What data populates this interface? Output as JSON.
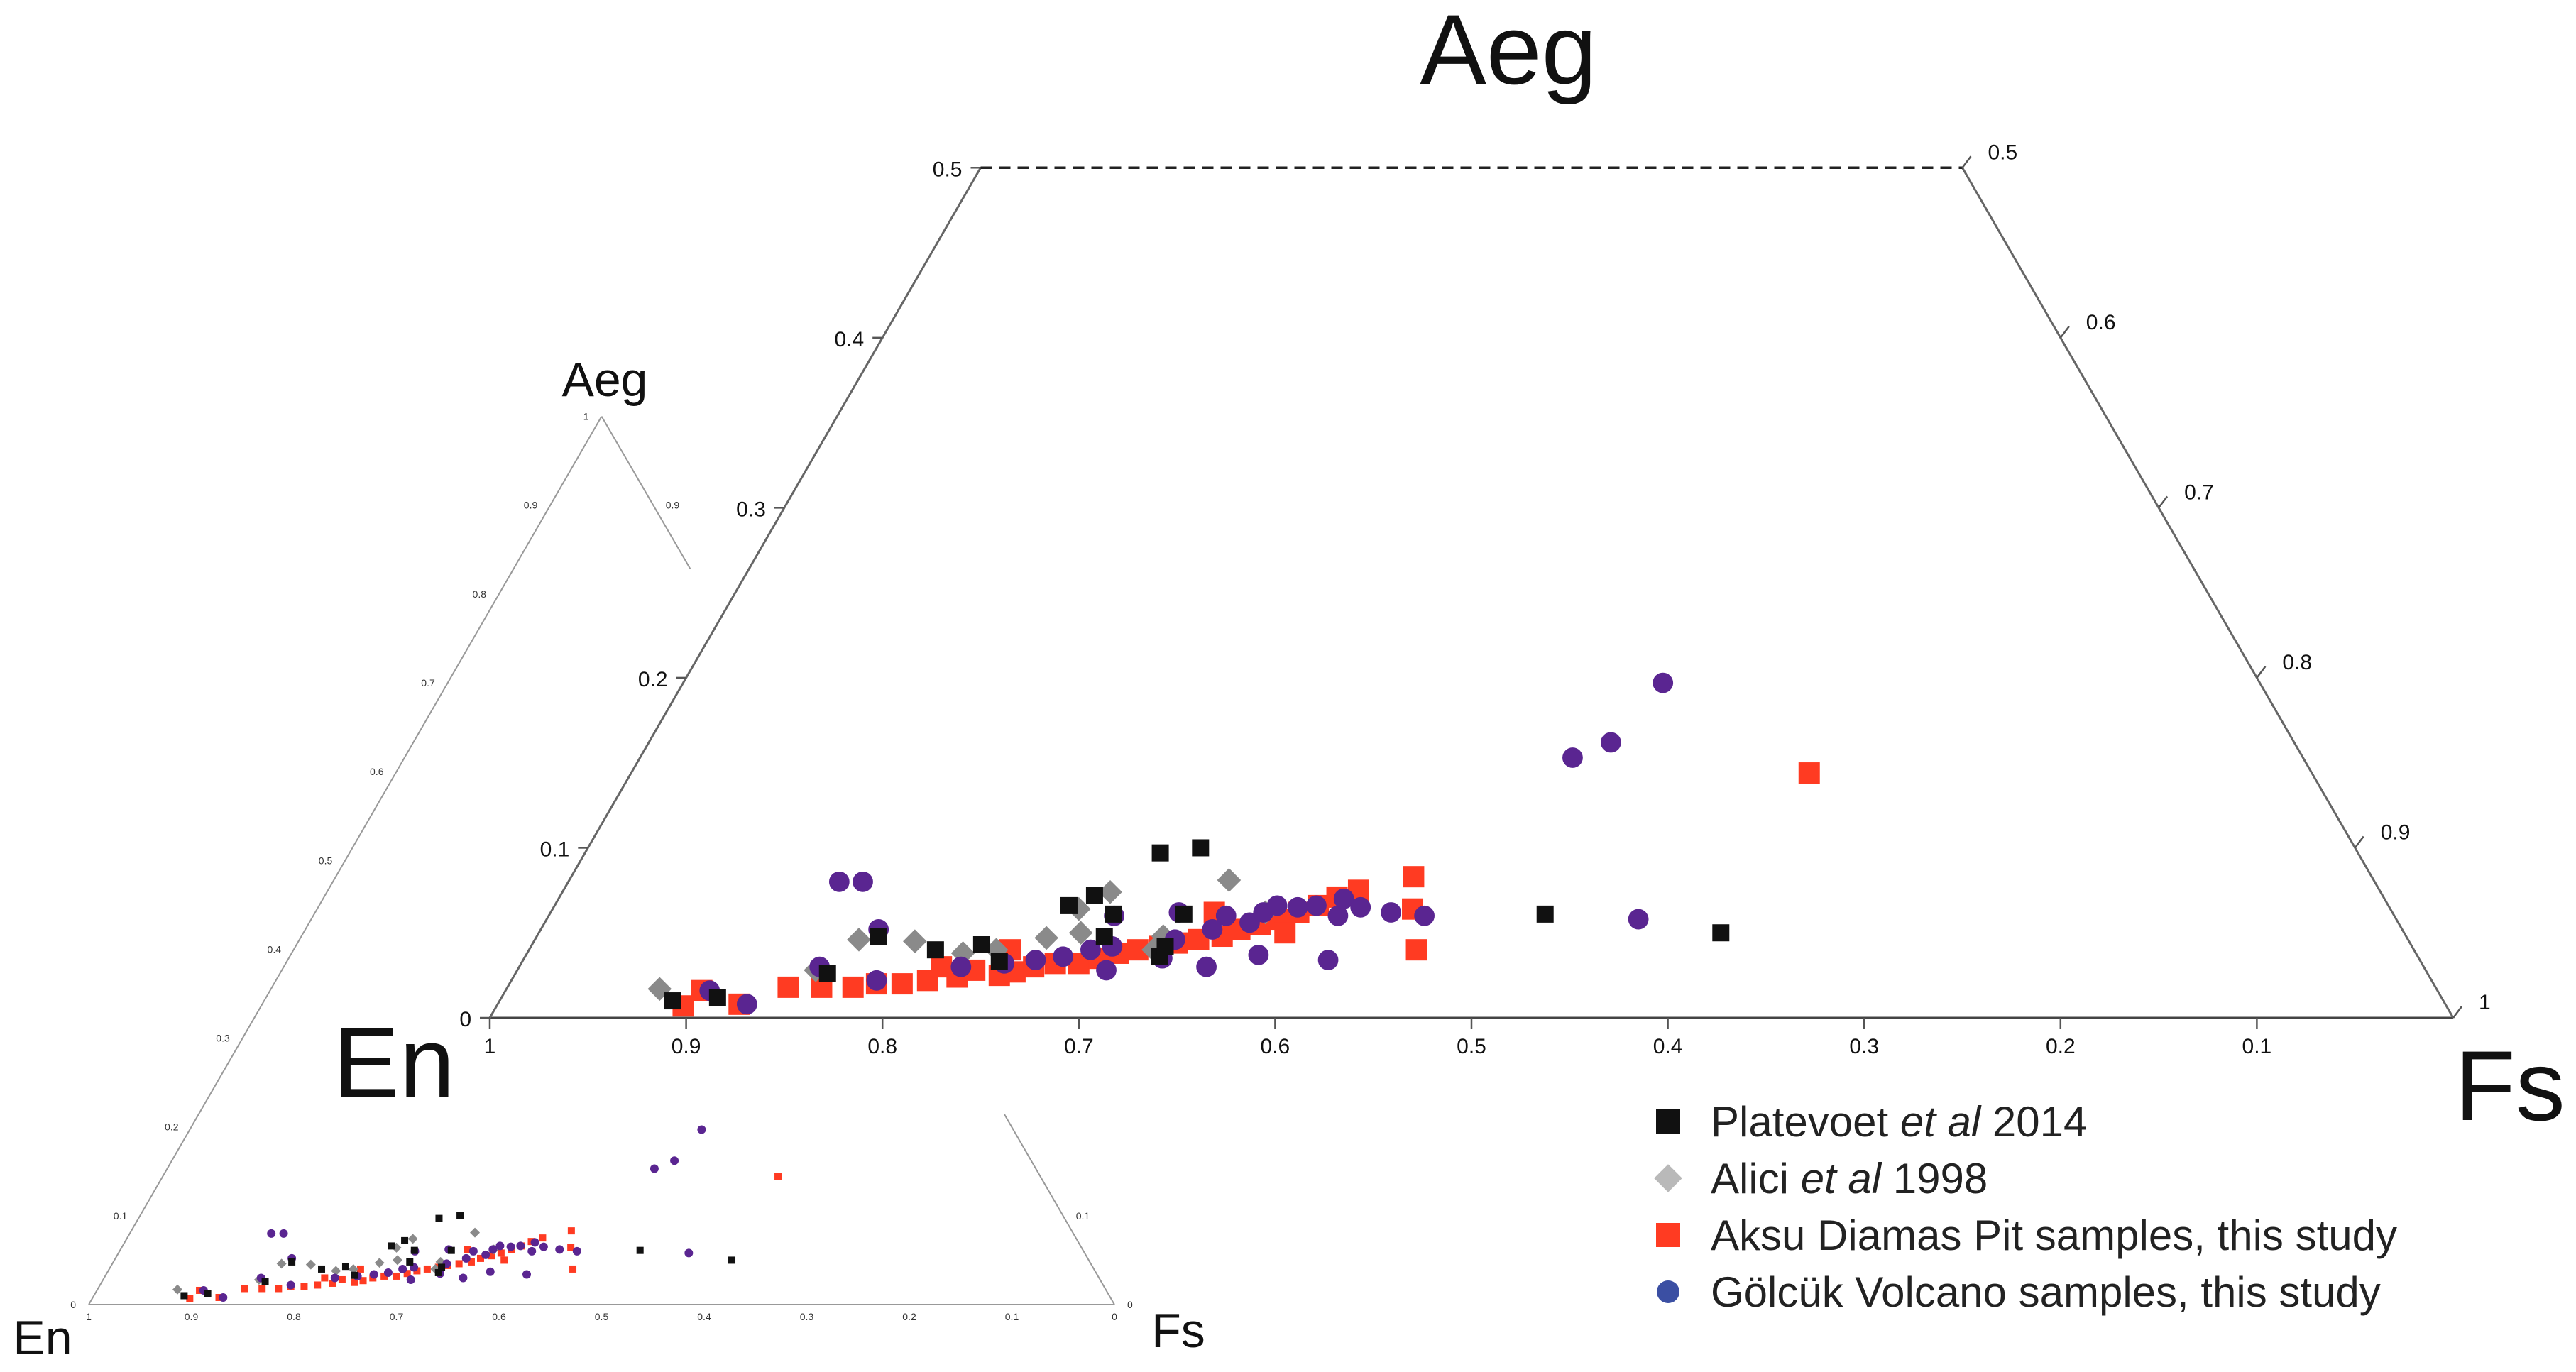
{
  "chart_data": [
    {
      "type": "scatter",
      "name": "main ternary (zoomed Aeg 0–0.5)",
      "corners": {
        "top": "Aeg",
        "left": "En",
        "right": "Fs"
      },
      "aeg_range": [
        0,
        0.5
      ],
      "left_ticks": [
        "0",
        "0.1",
        "0.2",
        "0.3",
        "0.4",
        "0.5"
      ],
      "bottom_ticks": [
        "1",
        "0.9",
        "0.8",
        "0.7",
        "0.6",
        "0.5",
        "0.4",
        "0.3",
        "0.2",
        "0.1"
      ],
      "right_ticks": [
        "0.5",
        "0.6",
        "0.7",
        "0.8",
        "0.9",
        "1"
      ],
      "series": [
        {
          "name": "Platevoet et al 2014",
          "marker": "square",
          "color": "#111111",
          "points": [
            [
              0.902,
              0.01
            ],
            [
              0.878,
              0.012
            ],
            [
              0.815,
              0.026
            ],
            [
              0.778,
              0.048
            ],
            [
              0.753,
              0.04
            ],
            [
              0.728,
              0.043
            ],
            [
              0.724,
              0.033
            ],
            [
              0.672,
              0.066
            ],
            [
              0.663,
              0.048
            ],
            [
              0.656,
              0.072
            ],
            [
              0.652,
              0.061
            ],
            [
              0.641,
              0.036
            ],
            [
              0.635,
              0.042
            ],
            [
              0.616,
              0.061
            ],
            [
              0.61,
              0.097
            ],
            [
              0.588,
              0.1
            ],
            [
              0.432,
              0.061
            ],
            [
              0.348,
              0.05
            ]
          ]
        },
        {
          "name": "Alici et al 1998",
          "marker": "diamond",
          "color": "#8a8a8a",
          "points": [
            [
              0.905,
              0.017
            ],
            [
              0.82,
              0.028
            ],
            [
              0.789,
              0.046
            ],
            [
              0.761,
              0.045
            ],
            [
              0.74,
              0.038
            ],
            [
              0.722,
              0.04
            ],
            [
              0.693,
              0.047
            ],
            [
              0.674,
              0.05
            ],
            [
              0.668,
              0.064
            ],
            [
              0.647,
              0.074
            ],
            [
              0.642,
              0.04
            ],
            [
              0.633,
              0.048
            ],
            [
              0.583,
              0.081
            ],
            [
              0.574,
              0.062
            ]
          ]
        },
        {
          "name": "Aksu Diamas Pit samples, this study",
          "marker": "square",
          "color": "#ff3b22",
          "points": [
            [
              0.898,
              0.007
            ],
            [
              0.884,
              0.016
            ],
            [
              0.869,
              0.008
            ],
            [
              0.839,
              0.018
            ],
            [
              0.822,
              0.018
            ],
            [
              0.806,
              0.018
            ],
            [
              0.793,
              0.02
            ],
            [
              0.78,
              0.02
            ],
            [
              0.766,
              0.022
            ],
            [
              0.75,
              0.024
            ],
            [
              0.739,
              0.028
            ],
            [
              0.728,
              0.025
            ],
            [
              0.719,
              0.027
            ],
            [
              0.708,
              0.03
            ],
            [
              0.696,
              0.032
            ],
            [
              0.684,
              0.032
            ],
            [
              0.672,
              0.035
            ],
            [
              0.661,
              0.038
            ],
            [
              0.65,
              0.04
            ],
            [
              0.638,
              0.042
            ],
            [
              0.628,
              0.044
            ],
            [
              0.616,
              0.046
            ],
            [
              0.603,
              0.048
            ],
            [
              0.592,
              0.052
            ],
            [
              0.58,
              0.055
            ],
            [
              0.569,
              0.058
            ],
            [
              0.557,
              0.062
            ],
            [
              0.545,
              0.066
            ],
            [
              0.533,
              0.071
            ],
            [
              0.52,
              0.075
            ],
            [
              0.508,
              0.04
            ],
            [
              0.498,
              0.064
            ],
            [
              0.488,
              0.083
            ],
            [
              0.256,
              0.144
            ],
            [
              0.6,
              0.062
            ],
            [
              0.57,
              0.05
            ],
            [
              0.755,
              0.03
            ],
            [
              0.715,
              0.04
            ]
          ]
        },
        {
          "name": "Gölcük Volcano samples, this study",
          "marker": "circle",
          "color": "#5a2591",
          "points": [
            [
              0.88,
              0.016
            ],
            [
              0.865,
              0.008
            ],
            [
              0.817,
              0.03
            ],
            [
              0.792,
              0.022
            ],
            [
              0.782,
              0.08
            ],
            [
              0.77,
              0.08
            ],
            [
              0.776,
              0.052
            ],
            [
              0.745,
              0.03
            ],
            [
              0.722,
              0.032
            ],
            [
              0.705,
              0.034
            ],
            [
              0.69,
              0.036
            ],
            [
              0.674,
              0.04
            ],
            [
              0.662,
              0.042
            ],
            [
              0.652,
              0.06
            ],
            [
              0.64,
              0.035
            ],
            [
              0.628,
              0.046
            ],
            [
              0.618,
              0.062
            ],
            [
              0.606,
              0.052
            ],
            [
              0.595,
              0.06
            ],
            [
              0.585,
              0.056
            ],
            [
              0.575,
              0.062
            ],
            [
              0.566,
              0.066
            ],
            [
              0.556,
              0.065
            ],
            [
              0.546,
              0.066
            ],
            [
              0.538,
              0.06
            ],
            [
              0.53,
              0.07
            ],
            [
              0.524,
              0.065
            ],
            [
              0.51,
              0.062
            ],
            [
              0.494,
              0.06
            ],
            [
              0.386,
              0.058
            ],
            [
              0.372,
              0.153
            ],
            [
              0.348,
              0.162
            ],
            [
              0.304,
              0.197
            ],
            [
              0.59,
              0.037
            ],
            [
              0.556,
              0.034
            ],
            [
              0.672,
              0.028
            ],
            [
              0.62,
              0.03
            ]
          ]
        }
      ]
    },
    {
      "type": "scatter",
      "name": "full ternary inset (Aeg 0–1)",
      "corners": {
        "top": "Aeg",
        "left": "En",
        "right": "Fs"
      },
      "left_ticks": [
        "0",
        "0.1",
        "0.2",
        "0.3",
        "0.4",
        "0.5",
        "0.6",
        "0.7",
        "0.8",
        "0.9",
        "1"
      ],
      "right_ticks": [
        "0",
        "0.1",
        "0.9"
      ],
      "bottom_ticks": [
        "1",
        "0.9",
        "0.8",
        "0.7",
        "0.6",
        "0.5",
        "0.4",
        "0.3",
        "0.2",
        "0.1",
        "0"
      ]
    }
  ],
  "legend": [
    {
      "marker": "square",
      "color": "#111111",
      "before": "Platevoet ",
      "italic": "et al",
      "after": " 2014"
    },
    {
      "marker": "diamond",
      "color": "#b9b9b9",
      "before": "Alici ",
      "italic": "et al",
      "after": " 1998"
    },
    {
      "marker": "square-red",
      "color": "#ff3b22",
      "before": "Aksu Diamas Pit samples, this study",
      "italic": "",
      "after": ""
    },
    {
      "marker": "circle",
      "color": "#3b4fa3",
      "before": "Gölcük Volcano samples, this study",
      "italic": "",
      "after": ""
    }
  ]
}
